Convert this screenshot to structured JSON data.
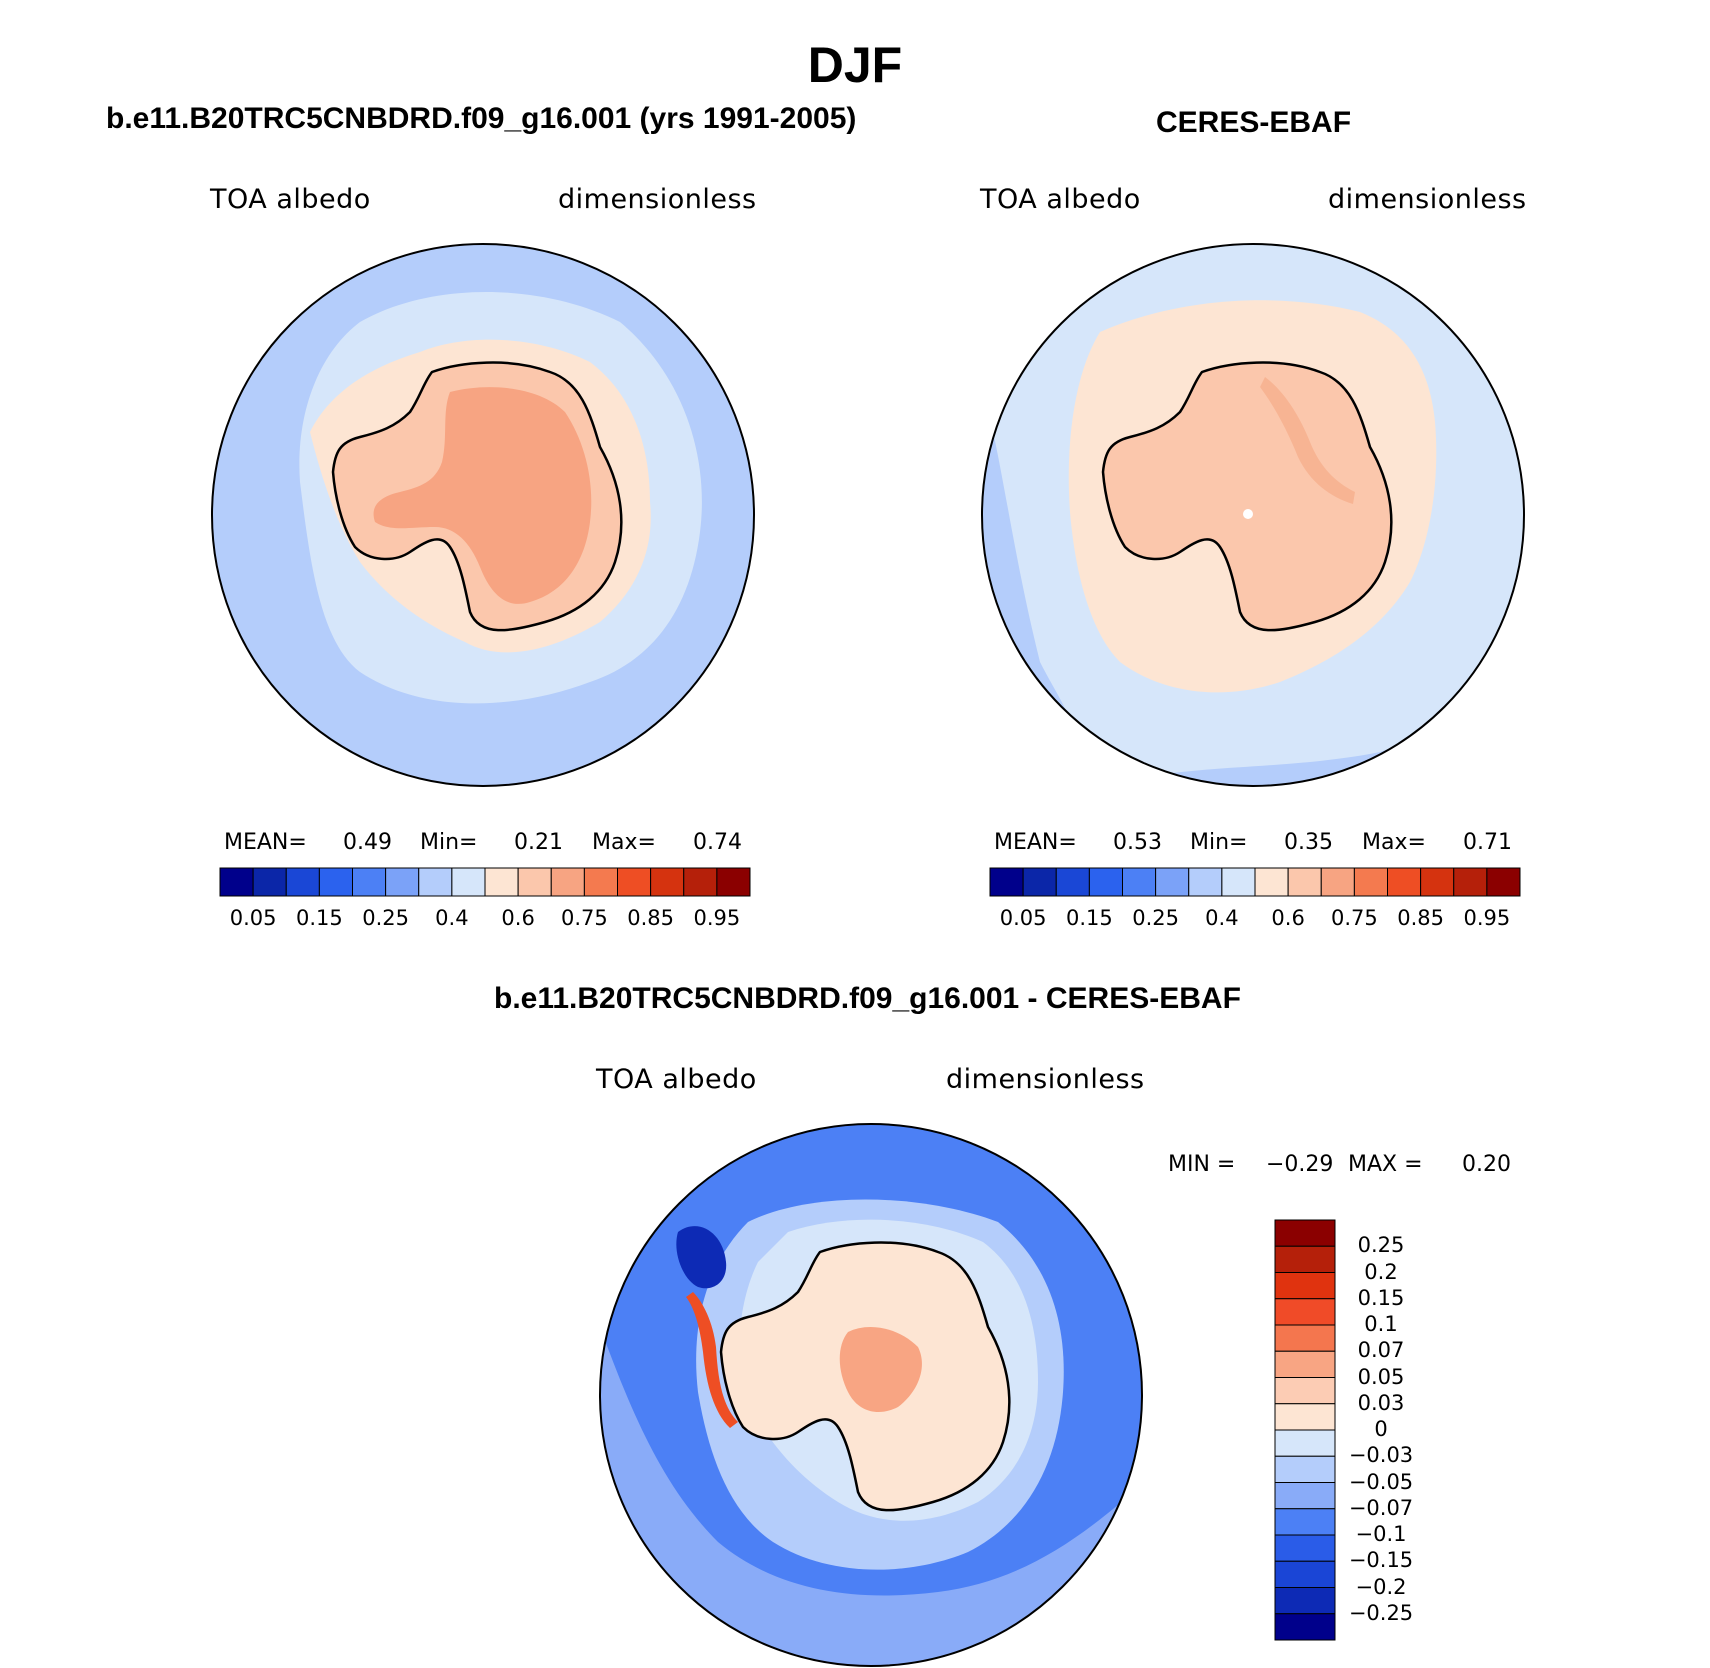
{
  "figure": {
    "season": "DJF"
  },
  "panels": [
    {
      "id": "model",
      "title": "b.e11.B20TRC5CNBDRD.f09_g16.001 (yrs 1991-2005)",
      "left_label": "TOA albedo",
      "right_label": "dimensionless",
      "stats": {
        "mean_label": "MEAN=",
        "mean": "0.49",
        "min_label": "Min=",
        "min": "0.21",
        "max_label": "Max=",
        "max": "0.74"
      },
      "colors": {
        "ocean": "#b4cdfb",
        "mid": "#d6e6fa",
        "coast": "#fde5d3",
        "land": "#fbc7ac",
        "interior": "#f7a482"
      }
    },
    {
      "id": "obs",
      "title": "CERES-EBAF",
      "left_label": "TOA albedo",
      "right_label": "dimensionless",
      "stats": {
        "mean_label": "MEAN=",
        "mean": "0.53",
        "min_label": "Min=",
        "min": "0.35",
        "max_label": "Max=",
        "max": "0.71"
      },
      "colors": {
        "ocean": "#d6e6fa",
        "mid": "#b4cdfb",
        "coast": "#fde5d3",
        "land": "#fbc7ac",
        "interior": "#f7b493"
      }
    }
  ],
  "colorbar_horizontal": {
    "colors": [
      "#00008b",
      "#0b26a8",
      "#1a47d6",
      "#2b62ee",
      "#4c80f5",
      "#7ba2f8",
      "#b4cdfb",
      "#d6e6fa",
      "#fde5d3",
      "#fbc7ac",
      "#f7a482",
      "#f47a4f",
      "#ee4e24",
      "#d5330f",
      "#b5200a",
      "#8b0000"
    ],
    "tick_labels": [
      "0.05",
      "0.15",
      "0.25",
      "0.4",
      "0.6",
      "0.75",
      "0.85",
      "0.95"
    ]
  },
  "difference": {
    "title": "b.e11.B20TRC5CNBDRD.f09_g16.001 - CERES-EBAF",
    "left_label": "TOA albedo",
    "right_label": "dimensionless",
    "min_label": "MIN =",
    "min": "−0.29",
    "max_label": "MAX =",
    "max": "0.20",
    "colorbar": {
      "colors_top_to_bottom": [
        "#8b0000",
        "#b5200a",
        "#e0330f",
        "#f04b28",
        "#f4764e",
        "#f8a583",
        "#fcccb4",
        "#fde5d3",
        "#d6e6fa",
        "#b4cdfb",
        "#89abf8",
        "#4c80f5",
        "#2a5ce8",
        "#1a45d6",
        "#0d2ab5",
        "#00008b"
      ],
      "tick_labels": [
        "0.25",
        "0.2",
        "0.15",
        "0.1",
        "0.07",
        "0.05",
        "0.03",
        "0",
        "−0.03",
        "−0.05",
        "−0.07",
        "−0.1",
        "−0.15",
        "−0.2",
        "−0.25"
      ]
    },
    "colors": {
      "ocean_far": "#4c80f5",
      "ocean": "#89abf8",
      "near": "#b4cdfb",
      "ring": "#d6e6fa",
      "land": "#fde5d3",
      "warm": "#f8a583",
      "strong_warm": "#ee4e24",
      "strong_cold": "#0d2ab5"
    }
  }
}
